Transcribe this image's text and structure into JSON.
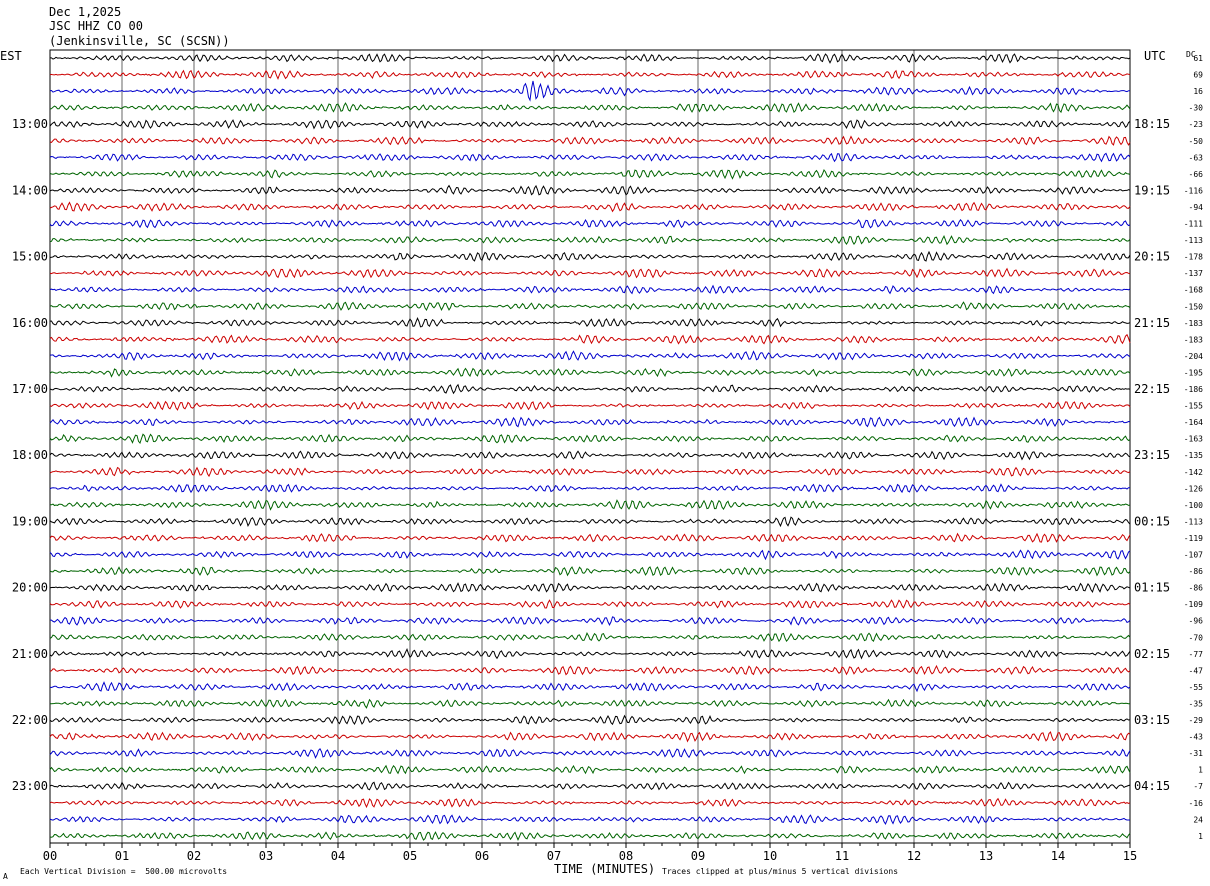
{
  "header": {
    "date": "Dec 1,2025",
    "station": "JSC HHZ CO 00",
    "location": "(Jenkinsville, SC (SCSN))"
  },
  "left_tz": "EST",
  "right_tz": "UTC",
  "dc_label": "DC",
  "colors": {
    "trace_cycle": [
      "#000000",
      "#cc0000",
      "#0000cc",
      "#006400"
    ],
    "grid": "#000000"
  },
  "footer": {
    "scale_note": "Each Vertical Division =  500.00 microvolts",
    "clip_note": "Traces clipped at plus/minus 5 vertical divisions",
    "corner_mark": "A"
  },
  "chart_data": {
    "type": "line",
    "title": "",
    "xlabel": "TIME (MINUTES)",
    "ylabel": "",
    "xlim": [
      0,
      15
    ],
    "x_ticks": [
      "00",
      "01",
      "02",
      "03",
      "04",
      "05",
      "06",
      "07",
      "08",
      "09",
      "10",
      "11",
      "12",
      "13",
      "14",
      "15"
    ],
    "grid": "vertical",
    "traces_per_hour": 4,
    "trace_count": 48,
    "left_hour_labels": [
      "13:00",
      "14:00",
      "15:00",
      "16:00",
      "17:00",
      "18:00",
      "19:00",
      "20:00",
      "21:00",
      "22:00",
      "23:00"
    ],
    "right_hour_labels": [
      "18:15",
      "19:15",
      "20:15",
      "21:15",
      "22:15",
      "23:15",
      "00:15",
      "01:15",
      "02:15",
      "03:15",
      "04:15"
    ],
    "dc_offsets": [
      61,
      69,
      16,
      -30,
      -23,
      -50,
      -63,
      -66,
      -116,
      -94,
      -111,
      -113,
      -178,
      -137,
      -168,
      -150,
      -183,
      -183,
      -204,
      -195,
      -186,
      -155,
      -164,
      -163,
      -135,
      -142,
      -126,
      -100,
      -113,
      -119,
      -107,
      -86,
      -86,
      -109,
      -96,
      -70,
      -77,
      -47,
      -55,
      -35,
      -29,
      -43,
      -31,
      1,
      -7,
      -16,
      24,
      1
    ],
    "events": [
      {
        "trace": 2,
        "minute": 6.7,
        "note": "burst"
      }
    ]
  }
}
